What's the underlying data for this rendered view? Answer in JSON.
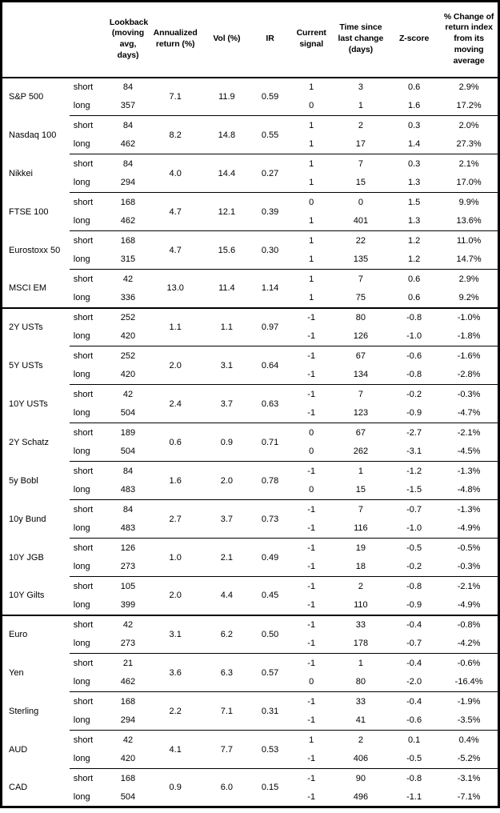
{
  "table": {
    "columns": {
      "lookback": "Lookback (moving avg, days)",
      "annualized_return": "Annualized return (%)",
      "vol": "Vol (%)",
      "ir": "IR",
      "current_signal": "Current signal",
      "time_since": "Time since last change (days)",
      "z_score": "Z-score",
      "pct_change": "% Change of return index from its moving average"
    },
    "sections": [
      {
        "assets": [
          {
            "name": "S&P 500",
            "annualized_return": "7.1",
            "vol": "11.9",
            "ir": "0.59",
            "rows": [
              {
                "period": "short",
                "lookback": "84",
                "signal": "1",
                "time_since": "3",
                "z_score": "0.6",
                "pct_change": "2.9%"
              },
              {
                "period": "long",
                "lookback": "357",
                "signal": "0",
                "time_since": "1",
                "z_score": "1.6",
                "pct_change": "17.2%"
              }
            ]
          },
          {
            "name": "Nasdaq 100",
            "annualized_return": "8.2",
            "vol": "14.8",
            "ir": "0.55",
            "rows": [
              {
                "period": "short",
                "lookback": "84",
                "signal": "1",
                "time_since": "2",
                "z_score": "0.3",
                "pct_change": "2.0%"
              },
              {
                "period": "long",
                "lookback": "462",
                "signal": "1",
                "time_since": "17",
                "z_score": "1.4",
                "pct_change": "27.3%"
              }
            ]
          },
          {
            "name": "Nikkei",
            "annualized_return": "4.0",
            "vol": "14.4",
            "ir": "0.27",
            "rows": [
              {
                "period": "short",
                "lookback": "84",
                "signal": "1",
                "time_since": "7",
                "z_score": "0.3",
                "pct_change": "2.1%"
              },
              {
                "period": "long",
                "lookback": "294",
                "signal": "1",
                "time_since": "15",
                "z_score": "1.3",
                "pct_change": "17.0%"
              }
            ]
          },
          {
            "name": "FTSE 100",
            "annualized_return": "4.7",
            "vol": "12.1",
            "ir": "0.39",
            "rows": [
              {
                "period": "short",
                "lookback": "168",
                "signal": "0",
                "time_since": "0",
                "z_score": "1.5",
                "pct_change": "9.9%"
              },
              {
                "period": "long",
                "lookback": "462",
                "signal": "1",
                "time_since": "401",
                "z_score": "1.3",
                "pct_change": "13.6%"
              }
            ]
          },
          {
            "name": "Eurostoxx 50",
            "annualized_return": "4.7",
            "vol": "15.6",
            "ir": "0.30",
            "rows": [
              {
                "period": "short",
                "lookback": "168",
                "signal": "1",
                "time_since": "22",
                "z_score": "1.2",
                "pct_change": "11.0%"
              },
              {
                "period": "long",
                "lookback": "315",
                "signal": "1",
                "time_since": "135",
                "z_score": "1.2",
                "pct_change": "14.7%"
              }
            ]
          },
          {
            "name": "MSCI EM",
            "annualized_return": "13.0",
            "vol": "11.4",
            "ir": "1.14",
            "rows": [
              {
                "period": "short",
                "lookback": "42",
                "signal": "1",
                "time_since": "7",
                "z_score": "0.6",
                "pct_change": "2.9%"
              },
              {
                "period": "long",
                "lookback": "336",
                "signal": "1",
                "time_since": "75",
                "z_score": "0.6",
                "pct_change": "9.2%"
              }
            ]
          }
        ]
      },
      {
        "assets": [
          {
            "name": "2Y USTs",
            "annualized_return": "1.1",
            "vol": "1.1",
            "ir": "0.97",
            "rows": [
              {
                "period": "short",
                "lookback": "252",
                "signal": "-1",
                "time_since": "80",
                "z_score": "-0.8",
                "pct_change": "-1.0%"
              },
              {
                "period": "long",
                "lookback": "420",
                "signal": "-1",
                "time_since": "126",
                "z_score": "-1.0",
                "pct_change": "-1.8%"
              }
            ]
          },
          {
            "name": "5Y USTs",
            "annualized_return": "2.0",
            "vol": "3.1",
            "ir": "0.64",
            "rows": [
              {
                "period": "short",
                "lookback": "252",
                "signal": "-1",
                "time_since": "67",
                "z_score": "-0.6",
                "pct_change": "-1.6%"
              },
              {
                "period": "long",
                "lookback": "420",
                "signal": "-1",
                "time_since": "134",
                "z_score": "-0.8",
                "pct_change": "-2.8%"
              }
            ]
          },
          {
            "name": "10Y USTs",
            "annualized_return": "2.4",
            "vol": "3.7",
            "ir": "0.63",
            "rows": [
              {
                "period": "short",
                "lookback": "42",
                "signal": "-1",
                "time_since": "7",
                "z_score": "-0.2",
                "pct_change": "-0.3%"
              },
              {
                "period": "long",
                "lookback": "504",
                "signal": "-1",
                "time_since": "123",
                "z_score": "-0.9",
                "pct_change": "-4.7%"
              }
            ]
          },
          {
            "name": "2Y Schatz",
            "annualized_return": "0.6",
            "vol": "0.9",
            "ir": "0.71",
            "rows": [
              {
                "period": "short",
                "lookback": "189",
                "signal": "0",
                "time_since": "67",
                "z_score": "-2.7",
                "pct_change": "-2.1%"
              },
              {
                "period": "long",
                "lookback": "504",
                "signal": "0",
                "time_since": "262",
                "z_score": "-3.1",
                "pct_change": "-4.5%"
              }
            ]
          },
          {
            "name": "5y Bobl",
            "annualized_return": "1.6",
            "vol": "2.0",
            "ir": "0.78",
            "rows": [
              {
                "period": "short",
                "lookback": "84",
                "signal": "-1",
                "time_since": "1",
                "z_score": "-1.2",
                "pct_change": "-1.3%"
              },
              {
                "period": "long",
                "lookback": "483",
                "signal": "0",
                "time_since": "15",
                "z_score": "-1.5",
                "pct_change": "-4.8%"
              }
            ]
          },
          {
            "name": "10y Bund",
            "annualized_return": "2.7",
            "vol": "3.7",
            "ir": "0.73",
            "rows": [
              {
                "period": "short",
                "lookback": "84",
                "signal": "-1",
                "time_since": "7",
                "z_score": "-0.7",
                "pct_change": "-1.3%"
              },
              {
                "period": "long",
                "lookback": "483",
                "signal": "-1",
                "time_since": "116",
                "z_score": "-1.0",
                "pct_change": "-4.9%"
              }
            ]
          },
          {
            "name": "10Y JGB",
            "annualized_return": "1.0",
            "vol": "2.1",
            "ir": "0.49",
            "rows": [
              {
                "period": "short",
                "lookback": "126",
                "signal": "-1",
                "time_since": "19",
                "z_score": "-0.5",
                "pct_change": "-0.5%"
              },
              {
                "period": "long",
                "lookback": "273",
                "signal": "-1",
                "time_since": "18",
                "z_score": "-0.2",
                "pct_change": "-0.3%"
              }
            ]
          },
          {
            "name": "10Y Gilts",
            "annualized_return": "2.0",
            "vol": "4.4",
            "ir": "0.45",
            "rows": [
              {
                "period": "short",
                "lookback": "105",
                "signal": "-1",
                "time_since": "2",
                "z_score": "-0.8",
                "pct_change": "-2.1%"
              },
              {
                "period": "long",
                "lookback": "399",
                "signal": "-1",
                "time_since": "110",
                "z_score": "-0.9",
                "pct_change": "-4.9%"
              }
            ]
          }
        ]
      },
      {
        "assets": [
          {
            "name": "Euro",
            "annualized_return": "3.1",
            "vol": "6.2",
            "ir": "0.50",
            "rows": [
              {
                "period": "short",
                "lookback": "42",
                "signal": "-1",
                "time_since": "33",
                "z_score": "-0.4",
                "pct_change": "-0.8%"
              },
              {
                "period": "long",
                "lookback": "273",
                "signal": "-1",
                "time_since": "178",
                "z_score": "-0.7",
                "pct_change": "-4.2%"
              }
            ]
          },
          {
            "name": "Yen",
            "annualized_return": "3.6",
            "vol": "6.3",
            "ir": "0.57",
            "rows": [
              {
                "period": "short",
                "lookback": "21",
                "signal": "-1",
                "time_since": "1",
                "z_score": "-0.4",
                "pct_change": "-0.6%"
              },
              {
                "period": "long",
                "lookback": "462",
                "signal": "0",
                "time_since": "80",
                "z_score": "-2.0",
                "pct_change": "-16.4%"
              }
            ]
          },
          {
            "name": "Sterling",
            "annualized_return": "2.2",
            "vol": "7.1",
            "ir": "0.31",
            "rows": [
              {
                "period": "short",
                "lookback": "168",
                "signal": "-1",
                "time_since": "33",
                "z_score": "-0.4",
                "pct_change": "-1.9%"
              },
              {
                "period": "long",
                "lookback": "294",
                "signal": "-1",
                "time_since": "41",
                "z_score": "-0.6",
                "pct_change": "-3.5%"
              }
            ]
          },
          {
            "name": "AUD",
            "annualized_return": "4.1",
            "vol": "7.7",
            "ir": "0.53",
            "rows": [
              {
                "period": "short",
                "lookback": "42",
                "signal": "1",
                "time_since": "2",
                "z_score": "0.1",
                "pct_change": "0.4%"
              },
              {
                "period": "long",
                "lookback": "420",
                "signal": "-1",
                "time_since": "406",
                "z_score": "-0.5",
                "pct_change": "-5.2%"
              }
            ]
          },
          {
            "name": "CAD",
            "annualized_return": "0.9",
            "vol": "6.0",
            "ir": "0.15",
            "rows": [
              {
                "period": "short",
                "lookback": "168",
                "signal": "-1",
                "time_since": "90",
                "z_score": "-0.8",
                "pct_change": "-3.1%"
              },
              {
                "period": "long",
                "lookback": "504",
                "signal": "-1",
                "time_since": "496",
                "z_score": "-1.1",
                "pct_change": "-7.1%"
              }
            ]
          }
        ]
      }
    ]
  }
}
